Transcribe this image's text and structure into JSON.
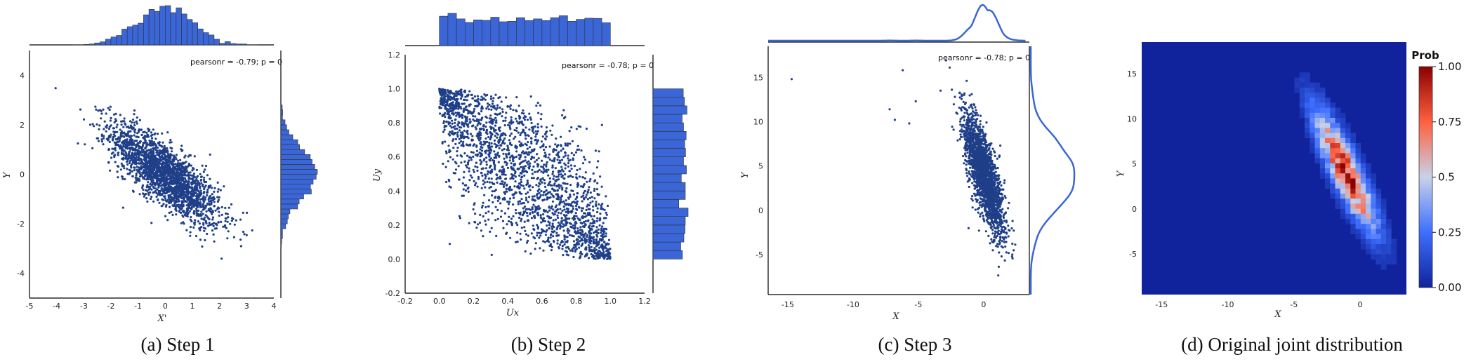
{
  "chart_data": [
    {
      "type": "scatter",
      "caption": "(a) Step 1",
      "xlabel": "X'",
      "ylabel": "Y",
      "xlim": [
        -5,
        4
      ],
      "ylim": [
        -5,
        5
      ],
      "xticks": [
        "-5",
        "-4",
        "-3",
        "-2",
        "-1",
        "0",
        "1",
        "2",
        "3",
        "4"
      ],
      "yticks": [
        "-4",
        "-2",
        "0",
        "2",
        "4"
      ],
      "annotation": "pearsonr = -0.79; p = 0",
      "marginals": {
        "top": "histogram",
        "right": "histogram"
      },
      "correlation": -0.79,
      "color": "#1f3f88"
    },
    {
      "type": "scatter",
      "caption": "(b) Step 2",
      "xlabel": "Ux",
      "ylabel": "Uy",
      "xlim": [
        -0.2,
        1.2
      ],
      "ylim": [
        -0.2,
        1.2
      ],
      "xticks": [
        "-0.2",
        "0.0",
        "0.2",
        "0.4",
        "0.6",
        "0.8",
        "1.0",
        "1.2"
      ],
      "yticks": [
        "-0.2",
        "0.0",
        "0.2",
        "0.4",
        "0.6",
        "0.8",
        "1.0",
        "1.2"
      ],
      "annotation": "pearsonr = -0.78; p = 0",
      "marginals": {
        "top": "histogram",
        "right": "histogram"
      },
      "correlation": -0.78,
      "color": "#1f3f88"
    },
    {
      "type": "scatter",
      "caption": "(c) Step 3",
      "xlabel": "X",
      "ylabel": "Y",
      "xlim": [
        -16.5,
        3.5
      ],
      "ylim": [
        -9.5,
        18.5
      ],
      "xticks": [
        "-15",
        "-10",
        "-5",
        "0"
      ],
      "yticks": [
        "-5",
        "0",
        "5",
        "10",
        "15"
      ],
      "annotation": "pearsonr = -0.78; p = 0",
      "marginals": {
        "top": "kde",
        "right": "kde"
      },
      "correlation": -0.78,
      "color": "#1f3f88"
    },
    {
      "type": "heatmap",
      "caption": "(d) Original joint distribution",
      "xlabel": "X",
      "ylabel": "Y",
      "xlim": [
        -16.5,
        3.5
      ],
      "ylim": [
        -9.5,
        18.5
      ],
      "xticks": [
        "-15",
        "-10",
        "-5",
        "0"
      ],
      "yticks": [
        "-5",
        "0",
        "5",
        "10",
        "15"
      ],
      "colorbar": {
        "title": "Prob",
        "ticks": [
          "0.00",
          "0.25",
          "0.5",
          "0.75",
          "1.00"
        ],
        "range": [
          0,
          1
        ],
        "colors": [
          "#10239c",
          "#3d6fff",
          "#c8d2e8",
          "#ff6040",
          "#8b0000"
        ]
      }
    }
  ]
}
